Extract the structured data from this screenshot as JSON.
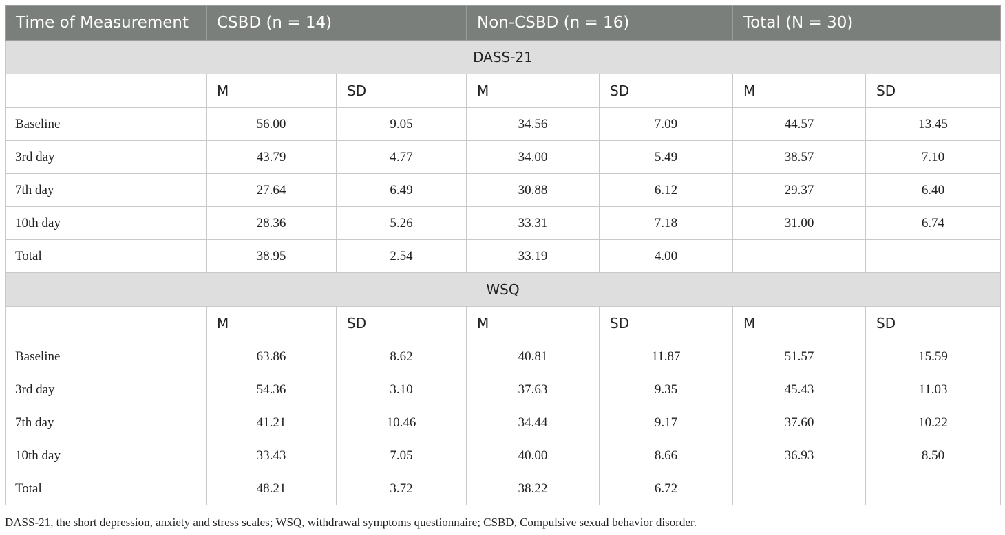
{
  "header": {
    "col_time": "Time of Measurement",
    "col_csbd": "CSBD (n = 14)",
    "col_noncsbd": "Non-CSBD (n = 16)",
    "col_total": "Total (N = 30)"
  },
  "sections": [
    {
      "title": "DASS-21",
      "sub": [
        "M",
        "SD",
        "M",
        "SD",
        "M",
        "SD"
      ],
      "rows": [
        {
          "label": "Baseline",
          "values": [
            "56.00",
            "9.05",
            "34.56",
            "7.09",
            "44.57",
            "13.45"
          ]
        },
        {
          "label": "3rd day",
          "values": [
            "43.79",
            "4.77",
            "34.00",
            "5.49",
            "38.57",
            "7.10"
          ]
        },
        {
          "label": "7th day",
          "values": [
            "27.64",
            "6.49",
            "30.88",
            "6.12",
            "29.37",
            "6.40"
          ]
        },
        {
          "label": "10th day",
          "values": [
            "28.36",
            "5.26",
            "33.31",
            "7.18",
            "31.00",
            "6.74"
          ]
        },
        {
          "label": "Total",
          "values": [
            "38.95",
            "2.54",
            "33.19",
            "4.00",
            "",
            ""
          ]
        }
      ]
    },
    {
      "title": "WSQ",
      "sub": [
        "M",
        "SD",
        "M",
        "SD",
        "M",
        "SD"
      ],
      "rows": [
        {
          "label": "Baseline",
          "values": [
            "63.86",
            "8.62",
            "40.81",
            "11.87",
            "51.57",
            "15.59"
          ]
        },
        {
          "label": "3rd day",
          "values": [
            "54.36",
            "3.10",
            "37.63",
            "9.35",
            "45.43",
            "11.03"
          ]
        },
        {
          "label": "7th day",
          "values": [
            "41.21",
            "10.46",
            "34.44",
            "9.17",
            "37.60",
            "10.22"
          ]
        },
        {
          "label": "10th day",
          "values": [
            "33.43",
            "7.05",
            "40.00",
            "8.66",
            "36.93",
            "8.50"
          ]
        },
        {
          "label": "Total",
          "values": [
            "48.21",
            "3.72",
            "38.22",
            "6.72",
            "",
            ""
          ]
        }
      ]
    }
  ],
  "footnote": "DASS-21, the short depression, anxiety and stress scales; WSQ, withdrawal symptoms questionnaire; CSBD, Compulsive sexual behavior disorder."
}
